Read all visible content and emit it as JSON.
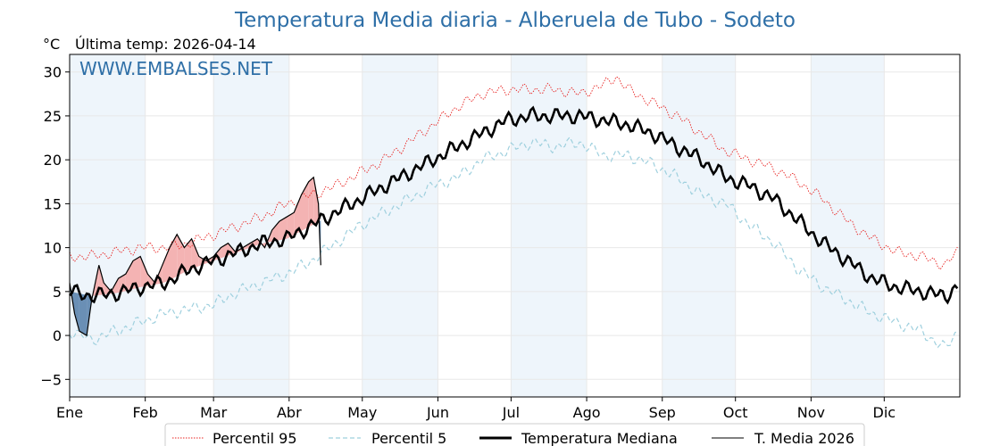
{
  "header": {
    "title": "Temperatura Media diaria - Alberuela de Tubo - Sodeto",
    "unit": "°C",
    "last_temp": "Última temp: 2026-04-14",
    "watermark": "WWW.EMBALSES.NET"
  },
  "colors": {
    "title": "#2e6fa7",
    "p95": "#e8211f",
    "p5": "#9fd0de",
    "median": "#000000",
    "media": "#000000",
    "above_fill": "#f4b3b3",
    "below_fill": "#6a8fb5",
    "band": "#eef5fb"
  },
  "chart_data": {
    "type": "line",
    "title": "Temperatura Media diaria - Alberuela de Tubo - Sodeto",
    "ylabel": "°C",
    "xlabel": "",
    "ylim": [
      -7,
      32
    ],
    "xlim": [
      1,
      366
    ],
    "yticks": [
      -5,
      0,
      5,
      10,
      15,
      20,
      25,
      30
    ],
    "month_labels": [
      "Ene",
      "Feb",
      "Mar",
      "Abr",
      "May",
      "Jun",
      "Jul",
      "Ago",
      "Sep",
      "Oct",
      "Nov",
      "Dic"
    ],
    "month_start_days": [
      1,
      32,
      60,
      91,
      121,
      152,
      182,
      213,
      244,
      274,
      305,
      335
    ],
    "legend": [
      "Percentil 95",
      "Percentil 5",
      "Temperatura Mediana",
      "T. Media 2026"
    ],
    "series": [
      {
        "name": "Percentil 95",
        "style": "dotted-red",
        "x": [
          1,
          10,
          20,
          30,
          40,
          50,
          60,
          70,
          80,
          90,
          100,
          110,
          120,
          130,
          140,
          150,
          160,
          170,
          180,
          190,
          200,
          210,
          220,
          225,
          230,
          240,
          250,
          260,
          270,
          280,
          290,
          300,
          310,
          320,
          330,
          340,
          350,
          360,
          365
        ],
        "values": [
          9,
          9,
          9.5,
          10,
          10,
          10.5,
          11.5,
          12.5,
          13.5,
          15,
          16,
          17,
          18.5,
          20,
          22,
          24,
          26,
          27.5,
          28,
          28,
          28,
          27.5,
          28.5,
          29.5,
          28,
          26.5,
          25,
          23,
          21,
          20,
          19,
          17.5,
          15.5,
          13,
          11,
          9.5,
          9,
          8,
          9.5
        ]
      },
      {
        "name": "Percentil 5",
        "style": "dashed-lightblue",
        "x": [
          1,
          10,
          20,
          30,
          40,
          50,
          60,
          70,
          80,
          90,
          100,
          110,
          120,
          130,
          140,
          150,
          160,
          170,
          180,
          190,
          200,
          210,
          220,
          230,
          240,
          250,
          260,
          270,
          280,
          290,
          300,
          310,
          320,
          330,
          340,
          350,
          360,
          365
        ],
        "values": [
          0.5,
          -0.5,
          0.5,
          1.5,
          2.5,
          3,
          3.5,
          5,
          6,
          7,
          8.5,
          10.5,
          12.5,
          14,
          15.5,
          17,
          18,
          20,
          21,
          22,
          21.5,
          22,
          20.5,
          20.5,
          19.5,
          18,
          16,
          15,
          12.5,
          10.5,
          7.5,
          5.5,
          4,
          2.5,
          1.5,
          0.5,
          -1.5,
          0.5
        ]
      },
      {
        "name": "Temperatura Mediana",
        "style": "thick-black",
        "x": [
          1,
          10,
          20,
          30,
          40,
          50,
          60,
          70,
          80,
          90,
          100,
          110,
          120,
          130,
          140,
          150,
          160,
          170,
          180,
          190,
          200,
          210,
          220,
          230,
          240,
          250,
          260,
          270,
          280,
          290,
          300,
          310,
          320,
          330,
          340,
          350,
          360,
          365
        ],
        "values": [
          5,
          4.5,
          4.8,
          5.5,
          6,
          7.5,
          8.5,
          9.5,
          10.5,
          11,
          12.5,
          14,
          15.5,
          17,
          18.5,
          20,
          21.5,
          23,
          24.5,
          25,
          25,
          25,
          24.5,
          24,
          23,
          21.5,
          20,
          18,
          17,
          15.5,
          13,
          10.5,
          8.5,
          6.5,
          5.5,
          5,
          4.5,
          5.5
        ]
      },
      {
        "name": "T. Media 2026",
        "style": "thin-black",
        "x": [
          1,
          3,
          5,
          8,
          10,
          13,
          15,
          18,
          21,
          24,
          27,
          30,
          33,
          36,
          39,
          42,
          45,
          48,
          51,
          54,
          57,
          60,
          63,
          66,
          69,
          72,
          75,
          78,
          81,
          84,
          87,
          90,
          93,
          96,
          99,
          101,
          103,
          104
        ],
        "values": [
          6,
          2.5,
          0.5,
          0,
          4,
          8,
          6,
          5,
          6.5,
          7,
          8.5,
          9,
          7,
          6,
          8,
          10,
          11.5,
          10,
          11,
          9,
          8.5,
          9,
          10,
          10.5,
          9.5,
          10,
          10.5,
          11,
          10,
          12,
          13,
          13.5,
          14,
          16,
          17.5,
          18,
          15,
          8
        ]
      }
    ]
  }
}
